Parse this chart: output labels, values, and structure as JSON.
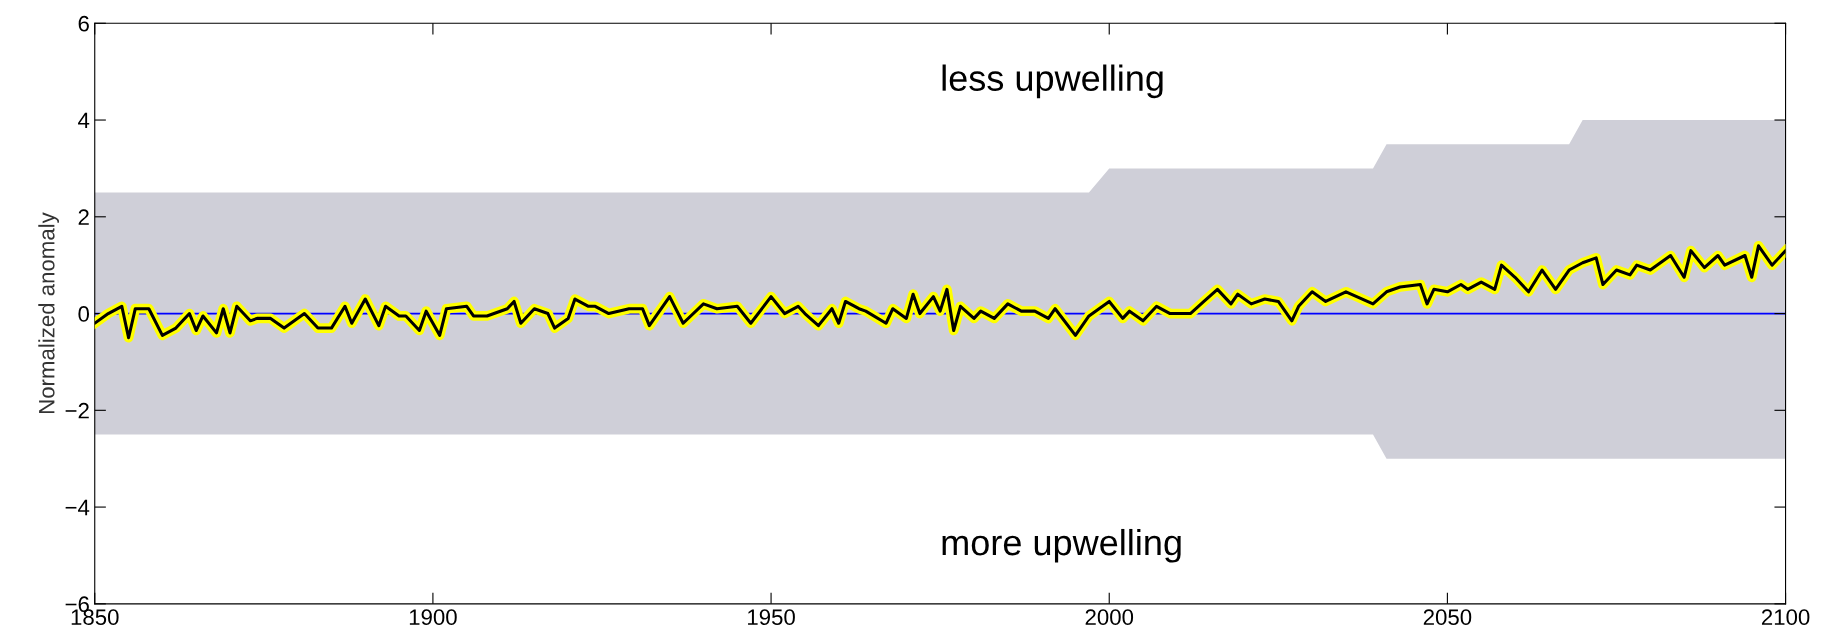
{
  "chart_data": {
    "type": "line",
    "ylabel": "Normalized anomaly",
    "annotations": [
      "less upwelling",
      "more upwelling"
    ],
    "xlim": [
      1850,
      2100
    ],
    "xticks": [
      1850,
      1900,
      1950,
      2000,
      2050,
      2100
    ],
    "ylim": [
      -6,
      6
    ],
    "yticks": [
      -6,
      -4,
      -2,
      0,
      2,
      4,
      6
    ],
    "grid": false,
    "marker": "none",
    "line_style": "solid",
    "ref_lines": [
      {
        "axis": "y",
        "value": 0,
        "color": "#0000ff",
        "line_style": "solid"
      }
    ],
    "series": [
      {
        "color": "#ffff00",
        "x": [
          1850,
          1852,
          1854,
          1855,
          1856,
          1858,
          1860,
          1862,
          1864,
          1865,
          1866,
          1868,
          1869,
          1870,
          1871,
          1873,
          1874,
          1876,
          1878,
          1881,
          1883,
          1885,
          1887,
          1888,
          1890,
          1892,
          1893,
          1895,
          1896,
          1898,
          1899,
          1901,
          1902,
          1905,
          1906,
          1908,
          1911,
          1912,
          1913,
          1915,
          1917,
          1918,
          1920,
          1921,
          1923,
          1924,
          1926,
          1929,
          1931,
          1932,
          1935,
          1937,
          1940,
          1942,
          1945,
          1947,
          1950,
          1952,
          1954,
          1955,
          1957,
          1959,
          1960,
          1961,
          1963,
          1964,
          1967,
          1968,
          1970,
          1971,
          1972,
          1974,
          1975,
          1976,
          1977,
          1978,
          1980,
          1981,
          1983,
          1985,
          1987,
          1989,
          1991,
          1992,
          1995,
          1997,
          2000,
          2002,
          2003,
          2005,
          2007,
          2009,
          2012,
          2014,
          2016,
          2018,
          2019,
          2021,
          2023,
          2025,
          2027,
          2028,
          2030,
          2032,
          2035,
          2039,
          2041,
          2043,
          2046,
          2047,
          2048,
          2050,
          2052,
          2053,
          2055,
          2057,
          2058,
          2060,
          2062,
          2064,
          2066,
          2068,
          2070,
          2072,
          2073,
          2075,
          2077,
          2078,
          2080,
          2083,
          2085,
          2086,
          2088,
          2090,
          2091,
          2094,
          2095,
          2096,
          2098,
          2100
        ],
        "values": [
          -0.2,
          0,
          0.15,
          -0.5,
          0.1,
          0.1,
          -0.45,
          -0.3,
          0,
          -0.35,
          -0.05,
          -0.4,
          0.1,
          -0.4,
          0.15,
          -0.15,
          -0.1,
          -0.1,
          -0.3,
          0,
          -0.3,
          -0.3,
          0.15,
          -0.2,
          0.3,
          -0.25,
          0.15,
          -0.05,
          -0.05,
          -0.35,
          0.05,
          -0.45,
          0.1,
          0.15,
          -0.05,
          -0.05,
          0.1,
          0.25,
          -0.2,
          0.1,
          0,
          -0.3,
          -0.1,
          0.3,
          0.15,
          0.15,
          0,
          0.1,
          0.1,
          -0.25,
          0.35,
          -0.2,
          0.2,
          0.1,
          0.15,
          -0.2,
          0.35,
          0,
          0.15,
          0,
          -0.25,
          0.1,
          -0.2,
          0.25,
          0.1,
          0.05,
          -0.2,
          0.1,
          -0.1,
          0.4,
          0,
          0.35,
          0.05,
          0.5,
          -0.35,
          0.15,
          -0.1,
          0.05,
          -0.1,
          0.2,
          0.05,
          0.05,
          -0.1,
          0.1,
          -0.45,
          -0.05,
          0.25,
          -0.1,
          0.05,
          -0.15,
          0.15,
          0,
          0,
          0.25,
          0.5,
          0.2,
          0.4,
          0.2,
          0.3,
          0.25,
          -0.15,
          0.15,
          0.45,
          0.25,
          0.45,
          0.2,
          0.45,
          0.55,
          0.6,
          0.2,
          0.5,
          0.45,
          0.6,
          0.5,
          0.65,
          0.5,
          1.0,
          0.75,
          0.45,
          0.9,
          0.5,
          0.9,
          1.05,
          1.15,
          0.6,
          0.9,
          0.8,
          1.0,
          0.9,
          1.2,
          0.75,
          1.3,
          0.95,
          1.2,
          1.0,
          1.2,
          0.75,
          1.4,
          1.0,
          1.3
        ],
        "upper": [
          2.5,
          2.5,
          2.5,
          2.5,
          2.5,
          2.5,
          2.5,
          2.5,
          2.5,
          2.5,
          2.5,
          2.5,
          2.5,
          2.5,
          2.5,
          2.5,
          2.5,
          2.5,
          2.5,
          2.5,
          2.5,
          2.5,
          2.5,
          2.5,
          2.5,
          2.5,
          2.5,
          2.5,
          2.5,
          2.5,
          2.5,
          2.5,
          2.5,
          2.5,
          2.5,
          2.5,
          2.5,
          2.5,
          2.5,
          2.5,
          2.5,
          2.5,
          2.5,
          2.5,
          2.5,
          2.5,
          2.5,
          2.5,
          2.5,
          2.5,
          2.5,
          2.5,
          2.5,
          2.5,
          2.5,
          2.5,
          2.5,
          2.5,
          2.5,
          2.5,
          2.5,
          2.5,
          2.5,
          2.5,
          2.5,
          2.5,
          2.5,
          2.5,
          2.5,
          2.5,
          2.5,
          2.5,
          2.5,
          2.5,
          2.5,
          2.5,
          2.5,
          2.5,
          2.5,
          2.5,
          2.5,
          2.5,
          2.5,
          2.5,
          2.5,
          2.5,
          3,
          3,
          3,
          3,
          3,
          3,
          3,
          3,
          3,
          3,
          3,
          3,
          3,
          3,
          3,
          3,
          3,
          3,
          3,
          3,
          3.5,
          3.5,
          3.5,
          3.5,
          3.5,
          3.5,
          3.5,
          3.5,
          3.5,
          3.5,
          3.5,
          3.5,
          3.5,
          3.5,
          3.5,
          3.5,
          4,
          4,
          4,
          4,
          4,
          4,
          4,
          4,
          4,
          4,
          4,
          4,
          4,
          4,
          4,
          4,
          4,
          4
        ],
        "lower": [
          -2.5,
          -2.5,
          -2.5,
          -2.5,
          -2.5,
          -2.5,
          -2.5,
          -2.5,
          -2.5,
          -2.5,
          -2.5,
          -2.5,
          -2.5,
          -2.5,
          -2.5,
          -2.5,
          -2.5,
          -2.5,
          -2.5,
          -2.5,
          -2.5,
          -2.5,
          -2.5,
          -2.5,
          -2.5,
          -2.5,
          -2.5,
          -2.5,
          -2.5,
          -2.5,
          -2.5,
          -2.5,
          -2.5,
          -2.5,
          -2.5,
          -2.5,
          -2.5,
          -2.5,
          -2.5,
          -2.5,
          -2.5,
          -2.5,
          -2.5,
          -2.5,
          -2.5,
          -2.5,
          -2.5,
          -2.5,
          -2.5,
          -2.5,
          -2.5,
          -2.5,
          -2.5,
          -2.5,
          -2.5,
          -2.5,
          -2.5,
          -2.5,
          -2.5,
          -2.5,
          -2.5,
          -2.5,
          -2.5,
          -2.5,
          -2.5,
          -2.5,
          -2.5,
          -2.5,
          -2.5,
          -2.5,
          -2.5,
          -2.5,
          -2.5,
          -2.5,
          -2.5,
          -2.5,
          -2.5,
          -2.5,
          -2.5,
          -2.5,
          -2.5,
          -2.5,
          -2.5,
          -2.5,
          -2.5,
          -2.5,
          -2.5,
          -2.5,
          -2.5,
          -2.5,
          -2.5,
          -2.5,
          -2.5,
          -2.5,
          -2.5,
          -2.5,
          -2.5,
          -2.5,
          -2.5,
          -2.5,
          -2.5,
          -2.5,
          -2.5,
          -2.5,
          -2.5,
          -2.5,
          -3,
          -3,
          -3,
          -3,
          -3,
          -3,
          -3,
          -3,
          -3,
          -3,
          -3,
          -3,
          -3,
          -3,
          -3,
          -3,
          -3,
          -3,
          -3,
          -3,
          -3,
          -3,
          -3,
          -3,
          -3,
          -3,
          -3,
          -3,
          -3,
          -3,
          -3,
          -3,
          -3,
          -3
        ]
      }
    ]
  }
}
